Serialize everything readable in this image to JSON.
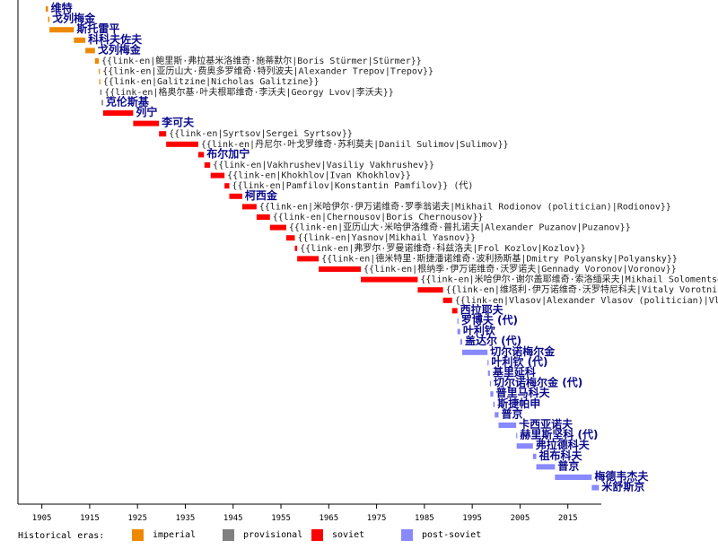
{
  "chart_data": {
    "type": "bar",
    "subtype": "timeline-gantt",
    "title": "",
    "xlabel": "",
    "ylabel": "",
    "xlim": [
      1900,
      2022
    ],
    "x_ticks": [
      1905,
      1915,
      1925,
      1935,
      1945,
      1955,
      1965,
      1975,
      1985,
      1995,
      2005,
      2015
    ],
    "grid": false,
    "era_colors": {
      "imperial": "#ee8800",
      "provisional": "#808080",
      "soviet": "#ff0000",
      "post-soviet": "#8888ff"
    },
    "legend": {
      "title": "Historical eras:",
      "placement": "bottom",
      "items": [
        {
          "label": "imperial",
          "era": "imperial"
        },
        {
          "label": "provisional",
          "era": "provisional"
        },
        {
          "label": "soviet",
          "era": "soviet"
        },
        {
          "label": "post-soviet",
          "era": "post-soviet"
        }
      ]
    },
    "series": [
      {
        "label": "维特",
        "start": 1905.8,
        "end": 1906.3,
        "era": "imperial",
        "link": true
      },
      {
        "label": "戈列梅金",
        "start": 1906.3,
        "end": 1906.6,
        "era": "imperial",
        "link": true
      },
      {
        "label": "斯托雷平",
        "start": 1906.6,
        "end": 1911.7,
        "era": "imperial",
        "link": true
      },
      {
        "label": "科科夫佐夫",
        "start": 1911.7,
        "end": 1914.1,
        "era": "imperial",
        "link": true
      },
      {
        "label": "戈列梅金",
        "start": 1914.1,
        "end": 1916.1,
        "era": "imperial",
        "link": true
      },
      {
        "label": "{{link-en|鲍里斯·弗拉基米洛维奇·施蒂默尔|Boris Stürmer|Stürmer}}",
        "start": 1916.1,
        "end": 1916.9,
        "era": "imperial",
        "link": false
      },
      {
        "label": "{{link-en|亚历山大·费奥多罗维奇·特列波夫|Alexander Trepov|Trepov}}",
        "start": 1916.9,
        "end": 1917.0,
        "era": "imperial",
        "link": false
      },
      {
        "label": "{{link-en|Galitzine|Nicholas Galitzine}}",
        "start": 1917.0,
        "end": 1917.2,
        "era": "imperial",
        "link": false
      },
      {
        "label": "{{link-en|格奥尔基·叶夫根耶维奇·李沃夫|Georgy Lvov|李沃夫}}",
        "start": 1917.2,
        "end": 1917.5,
        "era": "provisional",
        "link": false
      },
      {
        "label": "克伦斯基",
        "start": 1917.5,
        "end": 1917.8,
        "era": "provisional",
        "link": true
      },
      {
        "label": "列宁",
        "start": 1917.8,
        "end": 1924.1,
        "era": "soviet",
        "link": true
      },
      {
        "label": "李可夫",
        "start": 1924.1,
        "end": 1929.5,
        "era": "soviet",
        "link": true
      },
      {
        "label": "{{link-en|Syrtsov|Sergei Syrtsov}}",
        "start": 1929.5,
        "end": 1931.0,
        "era": "soviet",
        "link": false
      },
      {
        "label": "{{link-en|丹尼尔·叶戈罗维奇·苏利莫夫|Daniil Sulimov|Sulimov}}",
        "start": 1931.0,
        "end": 1937.7,
        "era": "soviet",
        "link": false
      },
      {
        "label": "布尔加宁",
        "start": 1937.7,
        "end": 1938.9,
        "era": "soviet",
        "link": true
      },
      {
        "label": "{{link-en|Vakhrushev|Vasiliy Vakhrushev}}",
        "start": 1939.0,
        "end": 1940.2,
        "era": "soviet",
        "link": false
      },
      {
        "label": "{{link-en|Khokhlov|Ivan Khokhlov}}",
        "start": 1940.3,
        "end": 1943.2,
        "era": "soviet",
        "link": false
      },
      {
        "label": "{{link-en|Pamfilov|Konstantin Pamfilov}} (代)",
        "start": 1943.2,
        "end": 1944.2,
        "era": "soviet",
        "link": false
      },
      {
        "label": "柯西金",
        "start": 1944.2,
        "end": 1946.9,
        "era": "soviet",
        "link": true
      },
      {
        "label": "{{link-en|米哈伊尔·伊万诺维奇·罗季翁诺夫|Mikhail Rodionov (politician)|Rodionov}}",
        "start": 1946.9,
        "end": 1949.9,
        "era": "soviet",
        "link": false
      },
      {
        "label": "{{link-en|Chernousov|Boris Chernousov}}",
        "start": 1949.9,
        "end": 1952.7,
        "era": "soviet",
        "link": false
      },
      {
        "label": "{{link-en|亚历山大·米哈伊洛维奇·普扎诺夫|Alexander Puzanov|Puzanov}}",
        "start": 1952.7,
        "end": 1956.1,
        "era": "soviet",
        "link": false
      },
      {
        "label": "{{link-en|Yasnov|Mikhail Yasnov}}",
        "start": 1956.1,
        "end": 1957.9,
        "era": "soviet",
        "link": false
      },
      {
        "label": "{{link-en|弗罗尔·罗曼诺维奇·科兹洛夫|Frol Kozlov|Kozlov}}",
        "start": 1957.9,
        "end": 1958.4,
        "era": "soviet",
        "link": false
      },
      {
        "label": "{{link-en|德米特里·斯捷潘诺维奇·波利扬斯基|Dmitry Polyansky|Polyansky}}",
        "start": 1958.4,
        "end": 1962.9,
        "era": "soviet",
        "link": false
      },
      {
        "label": "{{link-en|根纳季·伊万诺维奇·沃罗诺夫|Gennady Voronov|Voronov}}",
        "start": 1962.9,
        "end": 1971.7,
        "era": "soviet",
        "link": false
      },
      {
        "label": "{{link-en|米哈伊尔·谢尔盖耶维奇·索洛缅采夫|Mikhail Solomentsev|Solomentsev}}",
        "start": 1971.7,
        "end": 1983.6,
        "era": "soviet",
        "link": false
      },
      {
        "label": "{{link-en|维塔利·伊万诺维奇·沃罗特尼科夫|Vitaly Vorotnikov|Vorotnikov}}",
        "start": 1983.6,
        "end": 1988.9,
        "era": "soviet",
        "link": false
      },
      {
        "label": "{{link-en|Vlasov|Alexander Vlasov (politician)|Vlasov}}",
        "start": 1988.9,
        "end": 1990.8,
        "era": "soviet",
        "link": false
      },
      {
        "label": "西拉耶夫",
        "start": 1990.8,
        "end": 1991.9,
        "era": "soviet",
        "link": true
      },
      {
        "label": "罗博夫 (代)",
        "start": 1991.9,
        "end": 1992.0,
        "era": "post-soviet",
        "link": true
      },
      {
        "label": "叶利钦",
        "start": 1991.9,
        "end": 1992.5,
        "era": "post-soviet",
        "link": true
      },
      {
        "label": "盖达尔 (代)",
        "start": 1992.5,
        "end": 1992.9,
        "era": "post-soviet",
        "link": true
      },
      {
        "label": "切尔诺梅尔金",
        "start": 1992.9,
        "end": 1998.2,
        "era": "post-soviet",
        "link": true
      },
      {
        "label": "叶利钦 (代)",
        "start": 1998.2,
        "end": 1998.3,
        "era": "post-soviet",
        "link": true
      },
      {
        "label": "基里延科",
        "start": 1998.3,
        "end": 1998.7,
        "era": "post-soviet",
        "link": true
      },
      {
        "label": "切尔诺梅尔金 (代)",
        "start": 1998.7,
        "end": 1998.8,
        "era": "post-soviet",
        "link": true
      },
      {
        "label": "普里马科夫",
        "start": 1998.8,
        "end": 1999.4,
        "era": "post-soviet",
        "link": true
      },
      {
        "label": "斯捷帕申",
        "start": 1999.4,
        "end": 1999.7,
        "era": "post-soviet",
        "link": true
      },
      {
        "label": "普京",
        "start": 1999.7,
        "end": 2000.5,
        "era": "post-soviet",
        "link": true
      },
      {
        "label": "卡西亚诺夫",
        "start": 2000.5,
        "end": 2004.2,
        "era": "post-soviet",
        "link": true
      },
      {
        "label": "赫里斯坚科 (代)",
        "start": 2004.2,
        "end": 2004.3,
        "era": "post-soviet",
        "link": true
      },
      {
        "label": "弗拉德科夫",
        "start": 2004.3,
        "end": 2007.7,
        "era": "post-soviet",
        "link": true
      },
      {
        "label": "祖布科夫",
        "start": 2007.7,
        "end": 2008.4,
        "era": "post-soviet",
        "link": true
      },
      {
        "label": "普京",
        "start": 2008.4,
        "end": 2012.3,
        "era": "post-soviet",
        "link": true
      },
      {
        "label": "梅德韦杰夫",
        "start": 2012.3,
        "end": 2020.0,
        "era": "post-soviet",
        "link": true
      },
      {
        "label": "米舒斯京",
        "start": 2020.0,
        "end": 2021.5,
        "era": "post-soviet",
        "link": true
      }
    ]
  }
}
